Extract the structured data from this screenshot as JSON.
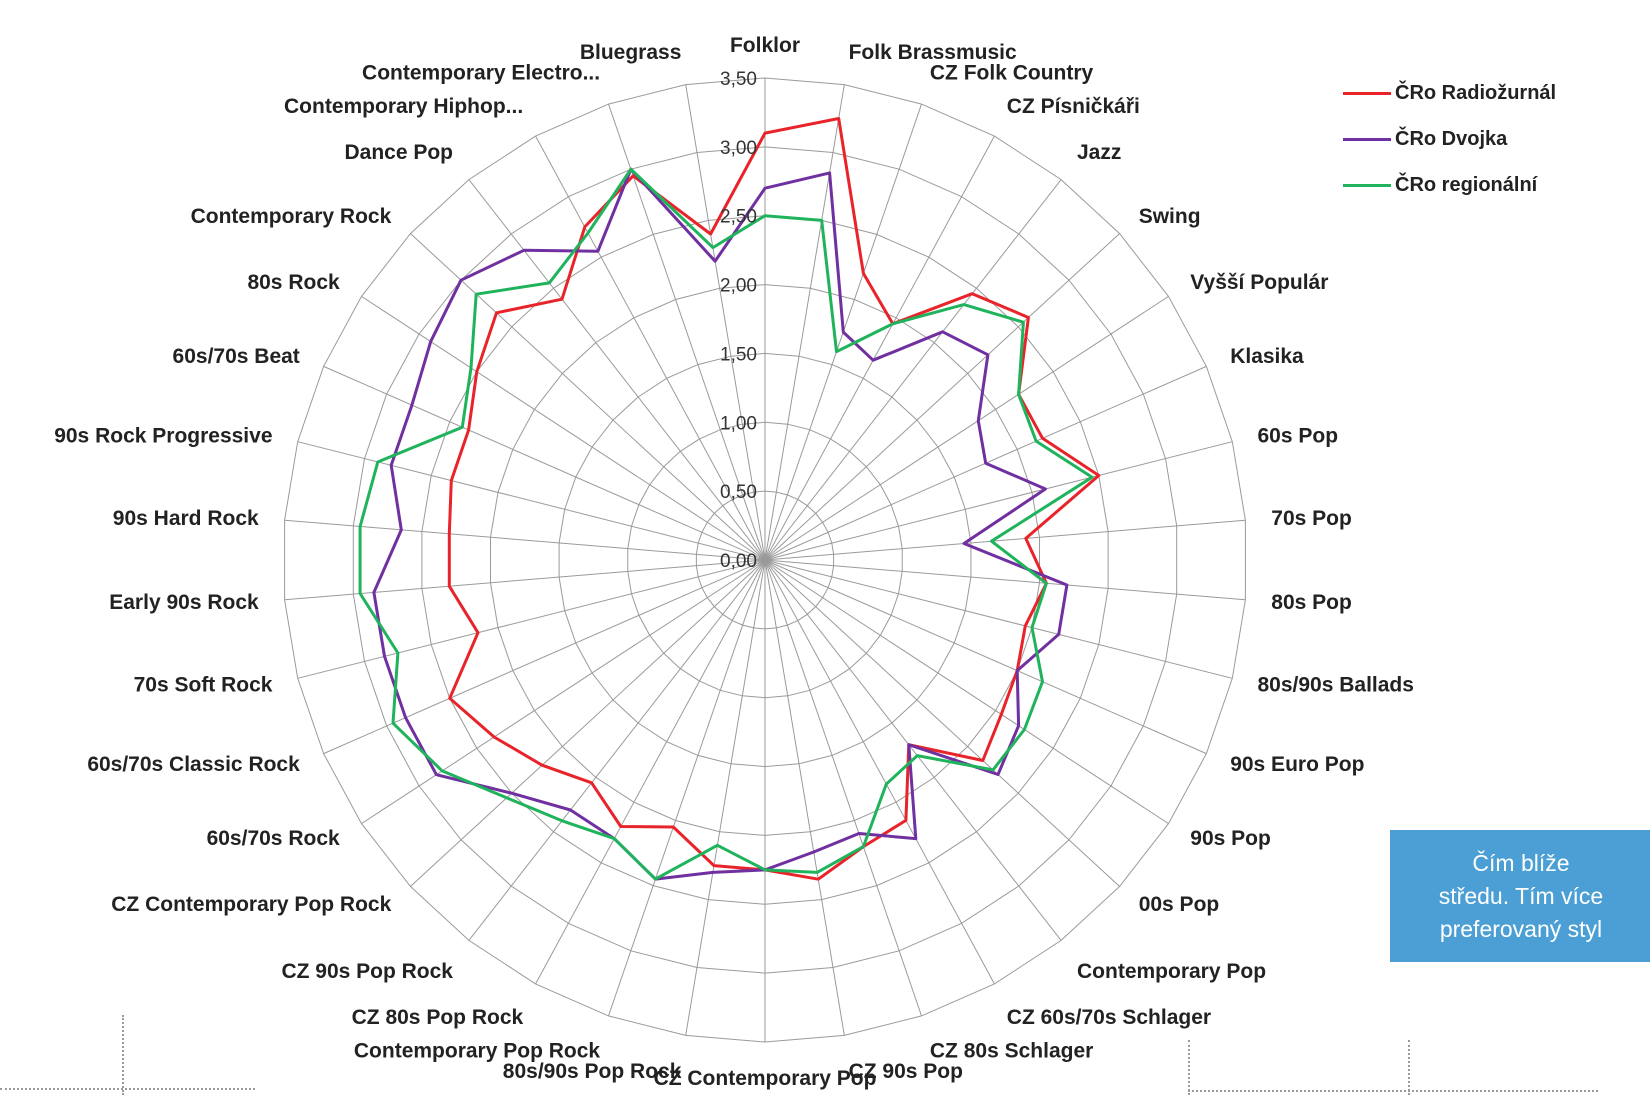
{
  "chart_data": {
    "type": "radar",
    "title": "",
    "categories": [
      "Folklor",
      "Folk Brassmusic",
      "CZ Folk Country",
      "CZ Písničkáři",
      "Jazz",
      "Swing",
      "Vyšší Populár",
      "Klasika",
      "60s Pop",
      "70s Pop",
      "80s Pop",
      "80s/90s Ballads",
      "90s Euro Pop",
      "90s Pop",
      "00s Pop",
      "Contemporary Pop",
      "CZ 60s/70s Schlager",
      "CZ 80s Schlager",
      "CZ 90s Pop",
      "CZ Contemporary Pop",
      "80s/90s Pop Rock",
      "Contemporary Pop Rock",
      "CZ 80s Pop Rock",
      "CZ 90s Pop Rock",
      "CZ Contemporary Pop Rock",
      "60s/70s Rock",
      "60s/70s Classic Rock",
      "70s Soft Rock",
      "Early 90s Rock",
      "90s Hard Rock",
      "90s Rock Progressive",
      "60s/70s Beat",
      "80s Rock",
      "Contemporary Rock",
      "Dance Pop",
      "Contemporary Hiphop...",
      "Contemporary Electro...",
      "Bluegrass"
    ],
    "axis": {
      "min": 0,
      "max": 3.5,
      "step": 0.5,
      "tick_labels": [
        "0,00",
        "0,50",
        "1,00",
        "1,50",
        "2,00",
        "2,50",
        "3,00",
        "3,50"
      ]
    },
    "grid": true,
    "legend_position": "top-right",
    "series": [
      {
        "name": "ČRo Radiožurnál",
        "color": "#e8242a",
        "values": [
          3.1,
          3.25,
          2.2,
          1.95,
          2.45,
          2.6,
          2.2,
          2.2,
          2.5,
          1.9,
          2.05,
          1.95,
          2.0,
          2.05,
          2.15,
          1.7,
          2.15,
          2.2,
          2.35,
          2.25,
          2.25,
          2.05,
          2.2,
          2.05,
          2.2,
          2.35,
          2.5,
          2.15,
          2.3,
          2.3,
          2.35,
          2.35,
          2.5,
          2.65,
          2.4,
          2.75,
          2.95,
          2.4
        ]
      },
      {
        "name": "ČRo Dvojka",
        "color": "#7030a0",
        "values": [
          2.7,
          2.85,
          1.75,
          1.65,
          2.1,
          2.2,
          1.85,
          1.75,
          2.1,
          1.45,
          2.2,
          2.2,
          2.0,
          2.2,
          2.3,
          1.7,
          2.3,
          2.1,
          2.15,
          2.25,
          2.3,
          2.45,
          2.3,
          2.3,
          2.5,
          2.85,
          2.85,
          2.85,
          2.85,
          2.65,
          2.8,
          2.8,
          2.9,
          3.0,
          2.85,
          2.55,
          3.0,
          2.2
        ]
      },
      {
        "name": "ČRo regionální",
        "color": "#1fb35c",
        "values": [
          2.5,
          2.5,
          1.6,
          1.95,
          2.35,
          2.55,
          2.2,
          2.15,
          2.45,
          1.65,
          2.05,
          2.0,
          2.2,
          2.25,
          2.25,
          1.8,
          1.85,
          2.2,
          2.3,
          2.25,
          2.1,
          2.45,
          2.3,
          2.4,
          2.55,
          2.8,
          2.95,
          2.75,
          2.95,
          2.95,
          2.9,
          2.4,
          2.55,
          2.85,
          2.55,
          2.7,
          3.0,
          2.3
        ]
      }
    ]
  },
  "note": {
    "line1": "Čím blíže",
    "line2": "středu. Tím více",
    "line3": "preferovaný styl"
  }
}
